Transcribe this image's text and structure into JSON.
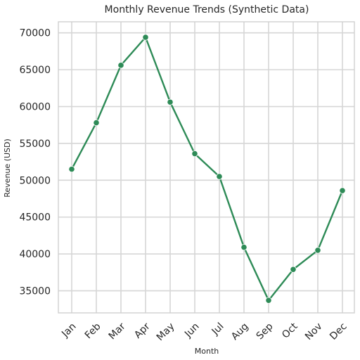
{
  "chart_data": {
    "type": "line",
    "title": "Monthly Revenue Trends (Synthetic Data)",
    "xlabel": "Month",
    "ylabel": "Revenue (USD)",
    "categories": [
      "Jan",
      "Feb",
      "Mar",
      "Apr",
      "May",
      "Jun",
      "Jul",
      "Aug",
      "Sep",
      "Oct",
      "Nov",
      "Dec"
    ],
    "series": [
      {
        "values": [
          51500,
          57800,
          65600,
          69400,
          60600,
          53600,
          50500,
          40900,
          33700,
          37900,
          40500,
          48600
        ],
        "color": "#2e8b57",
        "marker": "circle"
      }
    ],
    "ylim": [
      32000,
      71500
    ],
    "yticks": [
      35000,
      40000,
      45000,
      50000,
      55000,
      60000,
      65000,
      70000
    ],
    "grid": true,
    "legend": "none",
    "x_tick_rotation_deg": -45
  }
}
